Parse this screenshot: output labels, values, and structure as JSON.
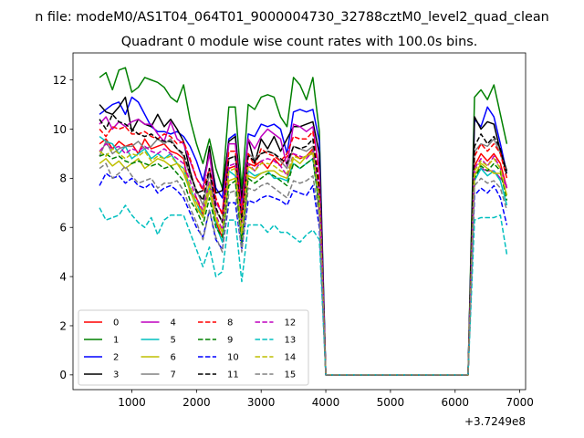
{
  "chart_data": {
    "type": "line",
    "suptitle": "n file: modeM0/AS1T04_064T01_9000004730_32788cztM0_level2_quad_clean",
    "title": "Quadrant 0 module wise count rates with 100.0s bins.",
    "xlabel": "",
    "ylabel": "",
    "x_offset_label": "+3.7249e8",
    "xlim": [
      90,
      7090
    ],
    "ylim": [
      -0.6,
      13.1
    ],
    "xticks": [
      1000,
      2000,
      3000,
      4000,
      5000,
      6000,
      7000
    ],
    "xtick_labels": [
      "1000",
      "2000",
      "3000",
      "4000",
      "5000",
      "6000",
      "7000"
    ],
    "yticks": [
      0,
      2,
      4,
      6,
      8,
      10,
      12
    ],
    "ytick_labels": [
      "0",
      "2",
      "4",
      "6",
      "8",
      "10",
      "12"
    ],
    "legend_position": "lower-left",
    "legend_columns": 4,
    "x": [
      500,
      600,
      700,
      800,
      900,
      1000,
      1100,
      1200,
      1300,
      1400,
      1500,
      1600,
      1700,
      1800,
      1900,
      2000,
      2100,
      2200,
      2300,
      2400,
      2500,
      2600,
      2700,
      2800,
      2900,
      3000,
      3100,
      3200,
      3300,
      3400,
      3500,
      3600,
      3700,
      3800,
      3900,
      4000,
      4100,
      4200,
      4300,
      4400,
      4500,
      4600,
      4700,
      4800,
      4900,
      5000,
      5100,
      5200,
      5300,
      5400,
      5500,
      5600,
      5700,
      5800,
      5900,
      6000,
      6100,
      6200,
      6300,
      6400,
      6500,
      6600,
      6700,
      6800
    ],
    "series": [
      {
        "name": "0",
        "color": "#ff0000",
        "dash": "solid",
        "values": [
          9.4,
          9.6,
          9.2,
          9.5,
          9.3,
          9.4,
          9.0,
          9.6,
          9.2,
          9.3,
          9.4,
          9.1,
          9.0,
          8.8,
          7.4,
          7.2,
          6.5,
          7.8,
          6.2,
          5.6,
          8.4,
          8.5,
          5.2,
          8.6,
          8.5,
          8.7,
          8.4,
          8.8,
          8.5,
          8.9,
          9.0,
          8.8,
          8.9,
          9.2,
          6.6,
          0,
          0,
          0,
          0,
          0,
          0,
          0,
          0,
          0,
          0,
          0,
          0,
          0,
          0,
          0,
          0,
          0,
          0,
          0,
          0,
          0,
          0,
          0,
          8.5,
          9.0,
          8.7,
          9.0,
          8.6,
          7.6
        ]
      },
      {
        "name": "1",
        "color": "#008000",
        "dash": "solid",
        "values": [
          12.1,
          12.3,
          11.6,
          12.4,
          12.5,
          11.5,
          11.7,
          12.1,
          12.0,
          11.9,
          11.7,
          11.3,
          11.1,
          11.8,
          10.4,
          9.4,
          8.6,
          9.6,
          8.4,
          7.6,
          10.9,
          10.9,
          7.6,
          11.0,
          10.8,
          11.3,
          11.4,
          11.3,
          10.5,
          10.1,
          12.1,
          11.8,
          11.2,
          12.1,
          9.9,
          0,
          0,
          0,
          0,
          0,
          0,
          0,
          0,
          0,
          0,
          0,
          0,
          0,
          0,
          0,
          0,
          0,
          0,
          0,
          0,
          0,
          0,
          0,
          11.3,
          11.6,
          11.2,
          11.8,
          10.6,
          9.4
        ]
      },
      {
        "name": "2",
        "color": "#0000ff",
        "dash": "solid",
        "values": [
          10.6,
          10.8,
          11.0,
          11.1,
          10.6,
          11.3,
          11.1,
          10.6,
          10.1,
          9.9,
          9.9,
          9.8,
          9.9,
          9.7,
          9.3,
          8.7,
          7.9,
          9.0,
          7.6,
          7.2,
          9.6,
          9.8,
          7.0,
          9.8,
          9.7,
          10.2,
          10.1,
          10.2,
          10.0,
          9.0,
          10.7,
          10.8,
          10.7,
          10.8,
          9.5,
          0,
          0,
          0,
          0,
          0,
          0,
          0,
          0,
          0,
          0,
          0,
          0,
          0,
          0,
          0,
          0,
          0,
          0,
          0,
          0,
          0,
          0,
          0,
          10.4,
          10.1,
          10.9,
          10.5,
          9.4,
          8.2
        ]
      },
      {
        "name": "3",
        "color": "#000000",
        "dash": "solid",
        "values": [
          11.0,
          10.7,
          10.6,
          10.9,
          11.3,
          9.9,
          10.4,
          10.2,
          10.1,
          10.6,
          10.1,
          10.4,
          10.0,
          9.5,
          8.3,
          7.4,
          7.5,
          9.3,
          7.4,
          7.5,
          9.5,
          9.7,
          7.2,
          9.6,
          8.6,
          9.6,
          9.2,
          9.7,
          9.1,
          9.6,
          10.1,
          10.1,
          10.2,
          10.3,
          9.0,
          0,
          0,
          0,
          0,
          0,
          0,
          0,
          0,
          0,
          0,
          0,
          0,
          0,
          0,
          0,
          0,
          0,
          0,
          0,
          0,
          0,
          0,
          0,
          10.5,
          10.0,
          10.3,
          10.2,
          9.1,
          8.3
        ]
      },
      {
        "name": "4",
        "color": "#bf00bf",
        "dash": "solid",
        "values": [
          10.2,
          10.5,
          10.0,
          10.3,
          10.1,
          10.3,
          10.4,
          10.2,
          10.2,
          9.8,
          9.5,
          10.3,
          9.6,
          9.4,
          8.7,
          8.0,
          7.6,
          9.0,
          7.0,
          6.6,
          9.4,
          9.4,
          6.7,
          9.6,
          9.2,
          9.7,
          10.0,
          9.8,
          9.6,
          8.5,
          10.2,
          10.1,
          9.9,
          10.1,
          8.3,
          0,
          0,
          0,
          0,
          0,
          0,
          0,
          0,
          0,
          0,
          0,
          0,
          0,
          0,
          0,
          0,
          0,
          0,
          0,
          0,
          0,
          0,
          0,
          8.2,
          8.4,
          8.3,
          8.3,
          8.0,
          7.7
        ]
      },
      {
        "name": "5",
        "color": "#00bfbf",
        "dash": "solid",
        "values": [
          9.7,
          9.5,
          9.4,
          9.0,
          9.3,
          8.8,
          9.0,
          9.2,
          8.8,
          9.0,
          8.8,
          9.0,
          8.6,
          8.4,
          7.6,
          7.0,
          6.4,
          7.6,
          6.1,
          5.4,
          8.3,
          8.1,
          5.3,
          8.3,
          8.1,
          8.2,
          8.3,
          8.0,
          8.0,
          7.9,
          8.6,
          8.4,
          8.6,
          8.8,
          6.8,
          0,
          0,
          0,
          0,
          0,
          0,
          0,
          0,
          0,
          0,
          0,
          0,
          0,
          0,
          0,
          0,
          0,
          0,
          0,
          0,
          0,
          0,
          0,
          7.9,
          8.4,
          8.1,
          8.3,
          7.9,
          6.9
        ]
      },
      {
        "name": "6",
        "color": "#bfbf00",
        "dash": "solid",
        "values": [
          8.6,
          8.8,
          8.5,
          8.7,
          8.4,
          8.6,
          8.8,
          8.4,
          8.6,
          8.8,
          8.7,
          8.5,
          8.6,
          8.2,
          7.5,
          6.8,
          6.4,
          7.5,
          6.3,
          5.8,
          7.9,
          8.0,
          5.6,
          8.1,
          8.0,
          8.2,
          8.3,
          8.3,
          8.1,
          8.0,
          8.8,
          8.6,
          8.9,
          9.0,
          7.0,
          0,
          0,
          0,
          0,
          0,
          0,
          0,
          0,
          0,
          0,
          0,
          0,
          0,
          0,
          0,
          0,
          0,
          0,
          0,
          0,
          0,
          0,
          0,
          8.1,
          8.6,
          8.4,
          8.2,
          8.2,
          7.3
        ]
      },
      {
        "name": "7",
        "color": "#808080",
        "dash": "solid",
        "values": [
          8.9,
          9.5,
          9.0,
          9.2,
          9.3,
          9.3,
          9.5,
          9.2,
          9.3,
          9.6,
          9.4,
          9.6,
          9.2,
          8.9,
          8.1,
          7.5,
          6.9,
          8.2,
          6.7,
          6.2,
          8.8,
          8.9,
          6.3,
          9.0,
          8.8,
          9.0,
          9.1,
          9.0,
          8.7,
          8.4,
          9.3,
          9.2,
          9.1,
          9.3,
          7.3,
          0,
          0,
          0,
          0,
          0,
          0,
          0,
          0,
          0,
          0,
          0,
          0,
          0,
          0,
          0,
          0,
          0,
          0,
          0,
          0,
          0,
          0,
          0,
          9.1,
          9.4,
          9.3,
          9.6,
          9.0,
          8.2
        ]
      },
      {
        "name": "8",
        "color": "#ff0000",
        "dash": "dashed",
        "values": [
          10.0,
          9.7,
          10.1,
          10.0,
          10.1,
          9.8,
          9.8,
          9.9,
          9.7,
          9.6,
          9.8,
          9.7,
          9.4,
          9.5,
          8.8,
          8.0,
          7.5,
          8.4,
          7.2,
          6.5,
          9.1,
          9.1,
          6.5,
          9.0,
          8.5,
          9.2,
          9.0,
          8.9,
          8.7,
          9.0,
          9.7,
          9.6,
          9.6,
          9.9,
          7.8,
          0,
          0,
          0,
          0,
          0,
          0,
          0,
          0,
          0,
          0,
          0,
          0,
          0,
          0,
          0,
          0,
          0,
          0,
          0,
          0,
          0,
          0,
          0,
          8.9,
          9.4,
          9.1,
          9.4,
          9.0,
          8.0
        ]
      },
      {
        "name": "9",
        "color": "#008000",
        "dash": "dashed",
        "values": [
          8.9,
          9.0,
          8.8,
          8.9,
          8.7,
          8.6,
          8.7,
          8.6,
          8.5,
          8.6,
          8.4,
          8.5,
          8.2,
          7.9,
          7.1,
          6.7,
          6.1,
          7.2,
          6.0,
          5.6,
          7.7,
          7.9,
          5.4,
          8.0,
          7.8,
          8.0,
          8.2,
          8.1,
          7.9,
          7.7,
          8.6,
          8.4,
          8.6,
          8.8,
          6.8,
          0,
          0,
          0,
          0,
          0,
          0,
          0,
          0,
          0,
          0,
          0,
          0,
          0,
          0,
          0,
          0,
          0,
          0,
          0,
          0,
          0,
          0,
          0,
          8.0,
          8.5,
          8.3,
          8.6,
          8.3,
          7.1
        ]
      },
      {
        "name": "10",
        "color": "#0000ff",
        "dash": "dashed",
        "values": [
          7.7,
          8.2,
          8.0,
          8.1,
          7.8,
          8.0,
          7.7,
          7.6,
          7.8,
          7.4,
          7.6,
          7.7,
          7.5,
          7.2,
          6.6,
          6.0,
          5.6,
          6.7,
          5.5,
          5.1,
          7.0,
          7.0,
          5.1,
          7.1,
          7.0,
          7.2,
          7.3,
          7.2,
          7.1,
          6.9,
          7.5,
          7.4,
          7.3,
          7.7,
          6.0,
          0,
          0,
          0,
          0,
          0,
          0,
          0,
          0,
          0,
          0,
          0,
          0,
          0,
          0,
          0,
          0,
          0,
          0,
          0,
          0,
          0,
          0,
          0,
          7.3,
          7.6,
          7.4,
          7.7,
          7.2,
          6.1
        ]
      },
      {
        "name": "11",
        "color": "#000000",
        "dash": "dashed",
        "values": [
          10.4,
          10.0,
          10.6,
          10.3,
          10.2,
          10.0,
          9.8,
          9.7,
          9.8,
          9.6,
          9.5,
          9.5,
          9.2,
          9.0,
          8.2,
          7.5,
          7.1,
          8.4,
          6.8,
          6.2,
          8.8,
          8.9,
          6.2,
          8.9,
          8.7,
          9.0,
          9.1,
          9.0,
          8.8,
          8.6,
          9.3,
          9.2,
          9.3,
          9.6,
          7.5,
          0,
          0,
          0,
          0,
          0,
          0,
          0,
          0,
          0,
          0,
          0,
          0,
          0,
          0,
          0,
          0,
          0,
          0,
          0,
          0,
          0,
          0,
          0,
          9.3,
          9.8,
          9.4,
          9.7,
          9.2,
          8.1
        ]
      },
      {
        "name": "12",
        "color": "#bf00bf",
        "dash": "dashed",
        "values": [
          9.1,
          9.4,
          9.2,
          9.3,
          9.0,
          9.2,
          9.1,
          9.3,
          9.1,
          9.0,
          9.2,
          9.0,
          8.8,
          8.6,
          7.9,
          7.2,
          6.7,
          7.9,
          6.5,
          5.9,
          8.5,
          8.6,
          5.9,
          8.6,
          8.3,
          8.7,
          8.8,
          8.7,
          8.5,
          8.1,
          9.0,
          8.9,
          8.8,
          9.1,
          7.2,
          0,
          0,
          0,
          0,
          0,
          0,
          0,
          0,
          0,
          0,
          0,
          0,
          0,
          0,
          0,
          0,
          0,
          0,
          0,
          0,
          0,
          0,
          0,
          8.4,
          8.8,
          8.5,
          8.9,
          8.4,
          7.6
        ]
      },
      {
        "name": "13",
        "color": "#00bfbf",
        "dash": "dashed",
        "values": [
          6.8,
          6.3,
          6.4,
          6.5,
          6.9,
          6.5,
          6.2,
          6.0,
          6.4,
          5.7,
          6.3,
          6.5,
          6.5,
          6.5,
          5.8,
          5.1,
          4.4,
          5.2,
          4.0,
          4.2,
          6.3,
          6.3,
          3.8,
          6.1,
          6.1,
          6.1,
          5.8,
          6.1,
          5.8,
          5.8,
          5.6,
          5.4,
          5.7,
          5.9,
          5.5,
          0,
          0,
          0,
          0,
          0,
          0,
          0,
          0,
          0,
          0,
          0,
          0,
          0,
          0,
          0,
          0,
          0,
          0,
          0,
          0,
          0,
          0,
          0,
          6.3,
          6.4,
          6.4,
          6.4,
          6.5,
          4.9
        ]
      },
      {
        "name": "14",
        "color": "#bfbf00",
        "dash": "dashed",
        "values": [
          9.1,
          8.9,
          9.2,
          9.0,
          8.8,
          9.0,
          8.9,
          9.1,
          8.7,
          8.9,
          8.8,
          8.9,
          8.6,
          8.4,
          7.7,
          7.0,
          6.6,
          7.8,
          6.4,
          5.8,
          8.3,
          8.4,
          5.8,
          8.5,
          8.3,
          8.6,
          8.6,
          8.5,
          8.3,
          8.2,
          8.9,
          8.8,
          8.9,
          9.1,
          7.1,
          0,
          0,
          0,
          0,
          0,
          0,
          0,
          0,
          0,
          0,
          0,
          0,
          0,
          0,
          0,
          0,
          0,
          0,
          0,
          0,
          0,
          0,
          0,
          8.3,
          8.7,
          8.5,
          8.8,
          8.4,
          7.3
        ]
      },
      {
        "name": "15",
        "color": "#808080",
        "dash": "dashed",
        "values": [
          8.4,
          8.6,
          8.0,
          8.2,
          8.5,
          8.1,
          7.8,
          7.9,
          8.0,
          7.6,
          7.8,
          7.8,
          7.9,
          7.5,
          6.8,
          6.2,
          5.5,
          6.7,
          5.6,
          5.0,
          7.4,
          7.5,
          5.0,
          7.6,
          7.5,
          7.7,
          7.8,
          7.6,
          7.4,
          7.2,
          7.9,
          7.8,
          7.9,
          8.1,
          6.4,
          0,
          0,
          0,
          0,
          0,
          0,
          0,
          0,
          0,
          0,
          0,
          0,
          0,
          0,
          0,
          0,
          0,
          0,
          0,
          0,
          0,
          0,
          0,
          7.7,
          8.0,
          7.8,
          7.9,
          7.6,
          6.7
        ]
      }
    ]
  }
}
